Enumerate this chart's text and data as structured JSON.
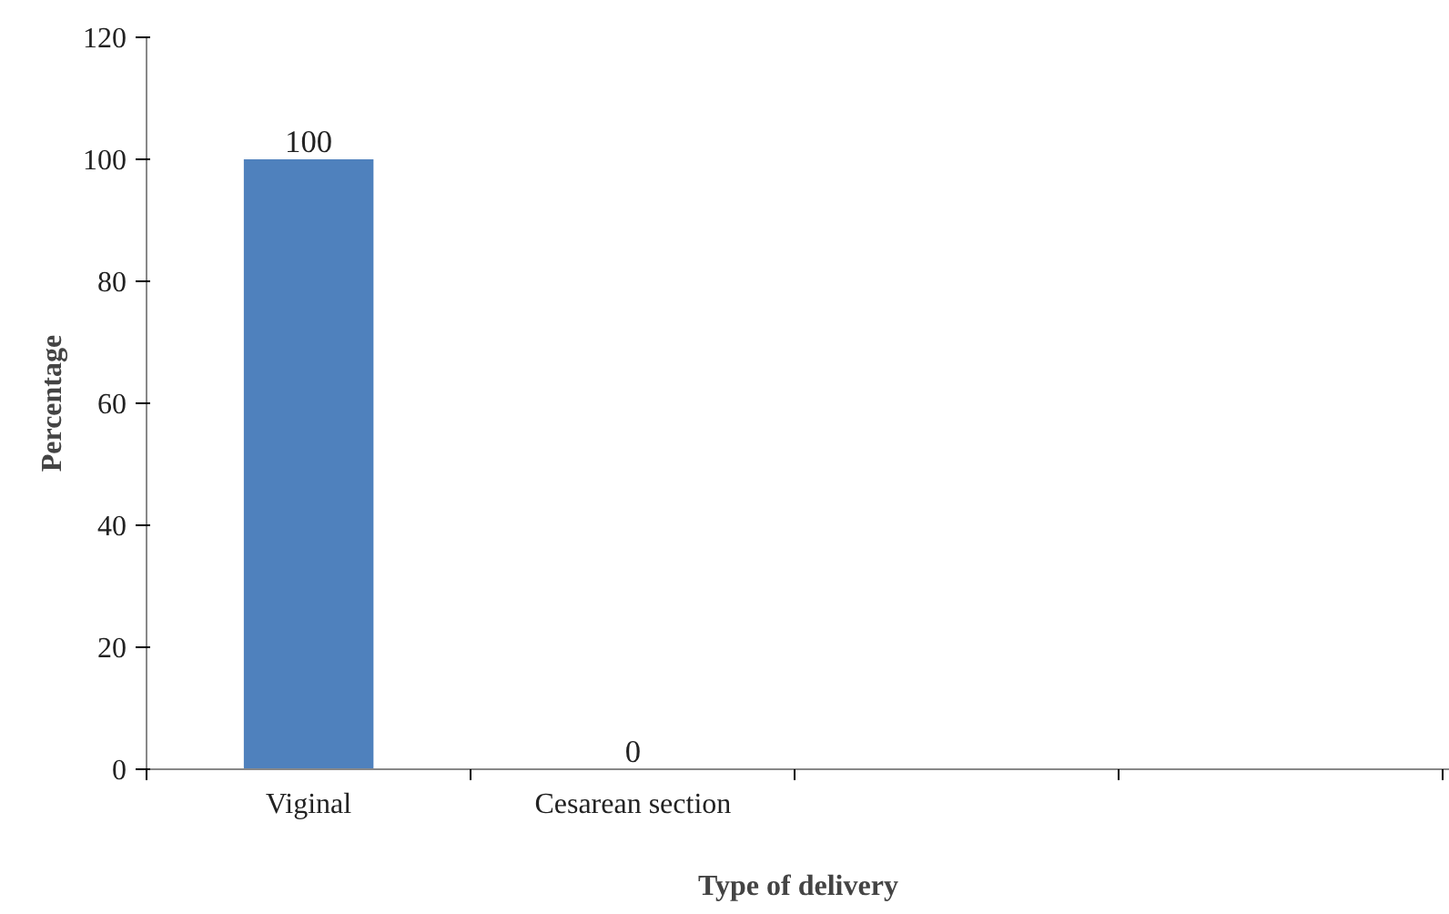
{
  "chart_data": {
    "type": "bar",
    "xlabel": "Type of delivery",
    "ylabel": "Percentage",
    "categories": [
      "Viginal",
      "Cesarean section",
      null,
      null
    ],
    "values": [
      100,
      0,
      null,
      null
    ],
    "color": "#4f81bd",
    "ylim": [
      0,
      120
    ],
    "yticks": [
      0,
      20,
      40,
      60,
      80,
      100,
      120
    ],
    "grid": false,
    "data_labels": true
  }
}
